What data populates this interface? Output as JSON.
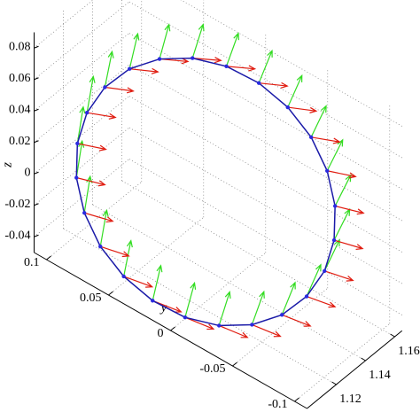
{
  "chart_data": {
    "type": "quiver3",
    "ylabel": "y",
    "zlabel": "z",
    "xlim": [
      1.1,
      1.165
    ],
    "ylim": [
      -0.11,
      0.11
    ],
    "zlim": [
      -0.05,
      0.09
    ],
    "xticks": [
      1.12,
      1.14,
      1.16
    ],
    "yticks": [
      -0.1,
      -0.05,
      0,
      0.05,
      0.1
    ],
    "zticks": [
      -0.04,
      -0.02,
      0,
      0.02,
      0.04,
      0.06,
      0.08
    ],
    "grid": true,
    "curve": {
      "color": "#1a1aa8",
      "marker_color": "#2a2ae0",
      "x": [
        1.1611,
        1.1601,
        1.1572,
        1.1525,
        1.1464,
        1.1393,
        1.1317,
        1.1241,
        1.117,
        1.1109,
        1.1062,
        1.1033,
        1.1023,
        1.1033,
        1.1062,
        1.1109,
        1.117,
        1.1241,
        1.1317,
        1.1393,
        1.1464,
        1.1525,
        1.1572,
        1.1601
      ],
      "y": [
        -0.0606,
        -0.0554,
        -0.0459,
        -0.0326,
        -0.0165,
        0.0013,
        0.0197,
        0.0373,
        0.0531,
        0.0658,
        0.0747,
        0.079,
        0.0786,
        0.0734,
        0.0639,
        0.0506,
        0.0345,
        0.0167,
        -0.0017,
        -0.0193,
        -0.0351,
        -0.0478,
        -0.0567,
        -0.061
      ],
      "z": [
        0.01,
        0.0308,
        0.0501,
        0.0667,
        0.0795,
        0.0875,
        0.0902,
        0.0875,
        0.0795,
        0.0667,
        0.0501,
        0.0308,
        0.01,
        -0.0108,
        -0.0301,
        -0.0467,
        -0.0595,
        -0.0675,
        -0.0702,
        -0.0675,
        -0.0595,
        -0.0467,
        -0.0301,
        -0.0108
      ]
    },
    "series": [
      {
        "color": "#33dd22",
        "u": [
          0,
          0,
          0,
          0,
          0,
          0,
          0,
          0,
          0,
          0,
          0,
          0,
          0,
          0,
          0,
          0,
          0,
          0,
          0,
          0,
          0,
          0,
          0,
          0
        ],
        "v": [
          -0.0126,
          -0.0125,
          -0.0121,
          -0.0114,
          -0.0106,
          -0.0096,
          -0.0086,
          -0.0076,
          -0.0066,
          -0.0058,
          -0.0051,
          -0.0047,
          -0.0046,
          -0.0047,
          -0.0051,
          -0.0058,
          -0.0066,
          -0.0076,
          -0.0086,
          -0.0096,
          -0.0106,
          -0.0114,
          -0.0121,
          -0.0125
        ],
        "w": [
          0.0253,
          0.0253,
          0.0253,
          0.0253,
          0.0253,
          0.0253,
          0.0253,
          0.0253,
          0.0253,
          0.0253,
          0.0253,
          0.0253,
          0.0253,
          0.0253,
          0.0253,
          0.0253,
          0.0253,
          0.0253,
          0.0253,
          0.0253,
          0.0253,
          0.0253,
          0.0253,
          0.0253
        ]
      },
      {
        "color": "#e01c10",
        "u": [
          0.0045,
          0.0045,
          0.0045,
          0.0045,
          0.0045,
          0.0045,
          0.0045,
          0.0045,
          0.0045,
          0.0045,
          0.0045,
          0.0045,
          0.0045,
          0.0045,
          0.0045,
          0.0045,
          0.0045,
          0.0045,
          0.0045,
          0.0045,
          0.0045,
          0.0045,
          0.0045,
          0.0045
        ],
        "v": [
          -0.0176,
          -0.0176,
          -0.0176,
          -0.0176,
          -0.0176,
          -0.0176,
          -0.0176,
          -0.0176,
          -0.0176,
          -0.0176,
          -0.0176,
          -0.0176,
          -0.0176,
          -0.0176,
          -0.0176,
          -0.0176,
          -0.0176,
          -0.0176,
          -0.0176,
          -0.0176,
          -0.0176,
          -0.0176,
          -0.0176,
          -0.0176
        ],
        "w": [
          0,
          0.0008,
          0.0015,
          0.0021,
          0.0026,
          0.0029,
          0.003,
          0.0029,
          0.0026,
          0.0021,
          0.0015,
          0.0008,
          0,
          -0.0008,
          -0.0015,
          -0.0021,
          -0.0026,
          -0.0029,
          -0.003,
          -0.0029,
          -0.0026,
          -0.0021,
          -0.0015,
          -0.0008
        ]
      }
    ]
  }
}
